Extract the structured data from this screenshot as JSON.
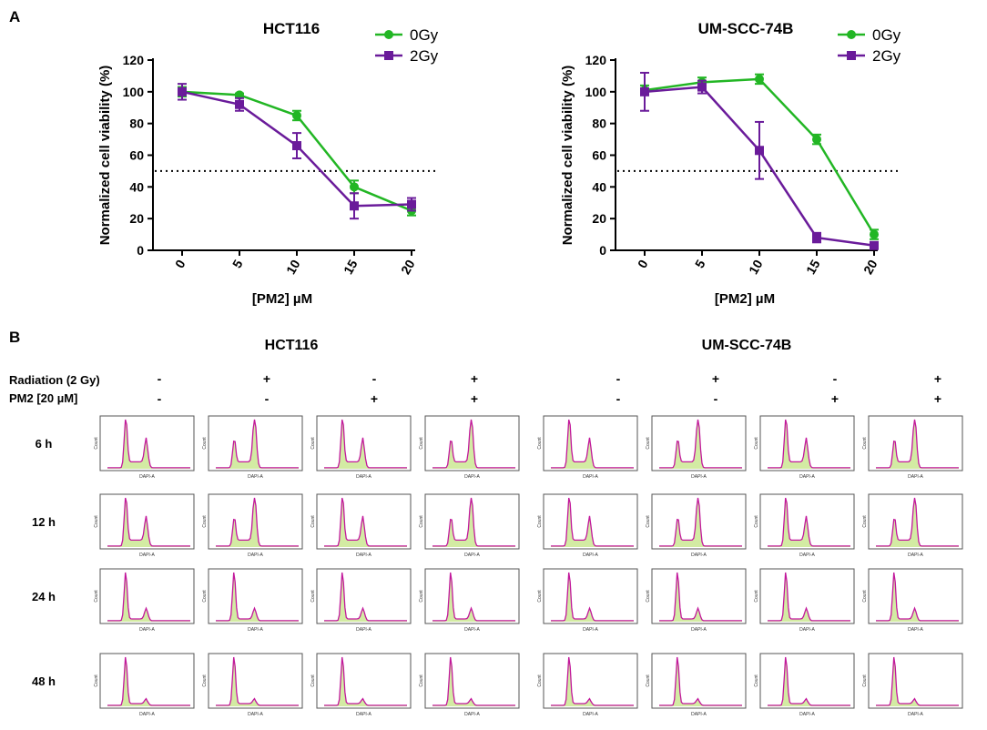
{
  "panel_a_label": "A",
  "panel_b_label": "B",
  "chart_data": [
    {
      "type": "line",
      "title": "HCT116",
      "xlabel": "[PM2] µM",
      "ylabel": "Normalized cell viability (%)",
      "x": [
        0,
        5,
        10,
        15,
        20
      ],
      "xticks": [
        "0",
        "5",
        "10",
        "15",
        "20"
      ],
      "yticks": [
        "0",
        "20",
        "40",
        "60",
        "80",
        "100",
        "120"
      ],
      "ylim": [
        0,
        120
      ],
      "reference_line": 50,
      "legend_position": "top-right",
      "series": [
        {
          "name": "0Gy",
          "color": "#22b624",
          "marker": "circle",
          "values": [
            100,
            98,
            85,
            40,
            25
          ],
          "errors": [
            3,
            1,
            3,
            4,
            3
          ]
        },
        {
          "name": "2Gy",
          "color": "#6a1b9a",
          "marker": "square",
          "values": [
            100,
            92,
            66,
            28,
            29
          ],
          "errors": [
            5,
            4,
            8,
            8,
            4
          ]
        }
      ]
    },
    {
      "type": "line",
      "title": "UM-SCC-74B",
      "xlabel": "[PM2] µM",
      "ylabel": "Normalized cell viability (%)",
      "x": [
        0,
        5,
        10,
        15,
        20
      ],
      "xticks": [
        "0",
        "5",
        "10",
        "15",
        "20"
      ],
      "yticks": [
        "0",
        "20",
        "40",
        "60",
        "80",
        "100",
        "120"
      ],
      "ylim": [
        0,
        120
      ],
      "reference_line": 50,
      "legend_position": "top-right",
      "series": [
        {
          "name": "0Gy",
          "color": "#22b624",
          "marker": "circle",
          "values": [
            101,
            106,
            108,
            70,
            10
          ],
          "errors": [
            3,
            3,
            3,
            3,
            3
          ]
        },
        {
          "name": "2Gy",
          "color": "#6a1b9a",
          "marker": "square",
          "values": [
            100,
            103,
            63,
            8,
            3
          ],
          "errors": [
            12,
            4,
            18,
            3,
            2
          ]
        }
      ]
    }
  ],
  "panel_b": {
    "groups": [
      "HCT116",
      "UM-SCC-74B"
    ],
    "condition_labels": [
      "Radiation (2 Gy)",
      "PM2 [20 µM]"
    ],
    "conditions": [
      {
        "radiation": "-",
        "pm2": "-"
      },
      {
        "radiation": "+",
        "pm2": "-"
      },
      {
        "radiation": "-",
        "pm2": "+"
      },
      {
        "radiation": "+",
        "pm2": "+"
      }
    ],
    "timepoints": [
      "6 h",
      "12 h",
      "24 h",
      "48 h"
    ],
    "histogram_xlabel": "DAPI-A",
    "histogram_ylabel": "Count"
  }
}
